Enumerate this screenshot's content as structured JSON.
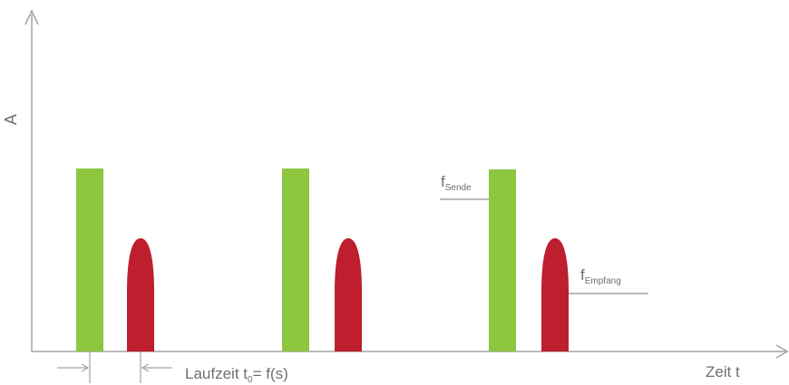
{
  "diagram": {
    "y_axis_label": "A",
    "x_axis_label": "Zeit t",
    "runtime_label": {
      "prefix": "Laufzeit t",
      "subscript": "0",
      "suffix": "= f(s)"
    },
    "send_label": {
      "main": "f",
      "subscript": "Sende"
    },
    "receive_label": {
      "main": "f",
      "subscript": "Empfang"
    },
    "colors": {
      "send_pulse": "#8dc63f",
      "receive_pulse": "#be1e2d",
      "axis": "#a3a3a3",
      "text": "#6f6f6f"
    }
  }
}
